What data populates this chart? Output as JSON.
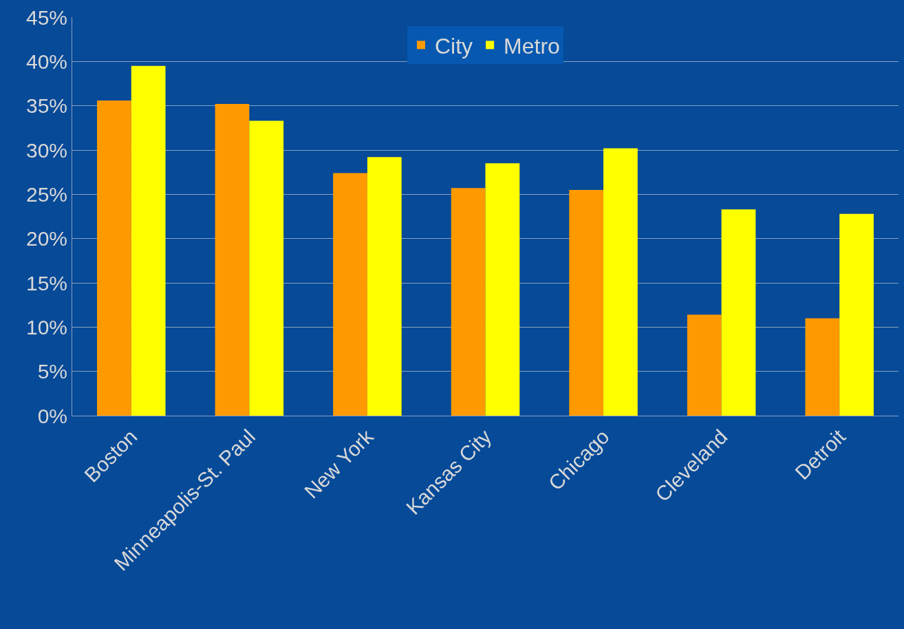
{
  "chart_data": {
    "type": "bar",
    "categories": [
      "Boston",
      "Minneapolis-St. Paul",
      "New York",
      "Kansas City",
      "Chicago",
      "Cleveland",
      "Detroit"
    ],
    "series": [
      {
        "name": "City",
        "color": "#ff9900",
        "values": [
          35.6,
          35.2,
          27.4,
          25.7,
          25.5,
          11.4,
          11.0
        ]
      },
      {
        "name": "Metro",
        "color": "#ffff00",
        "values": [
          39.5,
          33.3,
          29.2,
          28.5,
          30.2,
          23.3,
          22.8
        ]
      }
    ],
    "ylim": [
      0,
      45
    ],
    "yticks": [
      {
        "value": 0,
        "label": "0%"
      },
      {
        "value": 5,
        "label": "5%"
      },
      {
        "value": 10,
        "label": "10%"
      },
      {
        "value": 15,
        "label": "15%"
      },
      {
        "value": 20,
        "label": "20%"
      },
      {
        "value": 25,
        "label": "25%"
      },
      {
        "value": 30,
        "label": "30%"
      },
      {
        "value": 35,
        "label": "35%"
      },
      {
        "value": 40,
        "label": "40%"
      },
      {
        "value": 45,
        "label": "45%"
      }
    ],
    "grid": "y",
    "legend": "top"
  }
}
